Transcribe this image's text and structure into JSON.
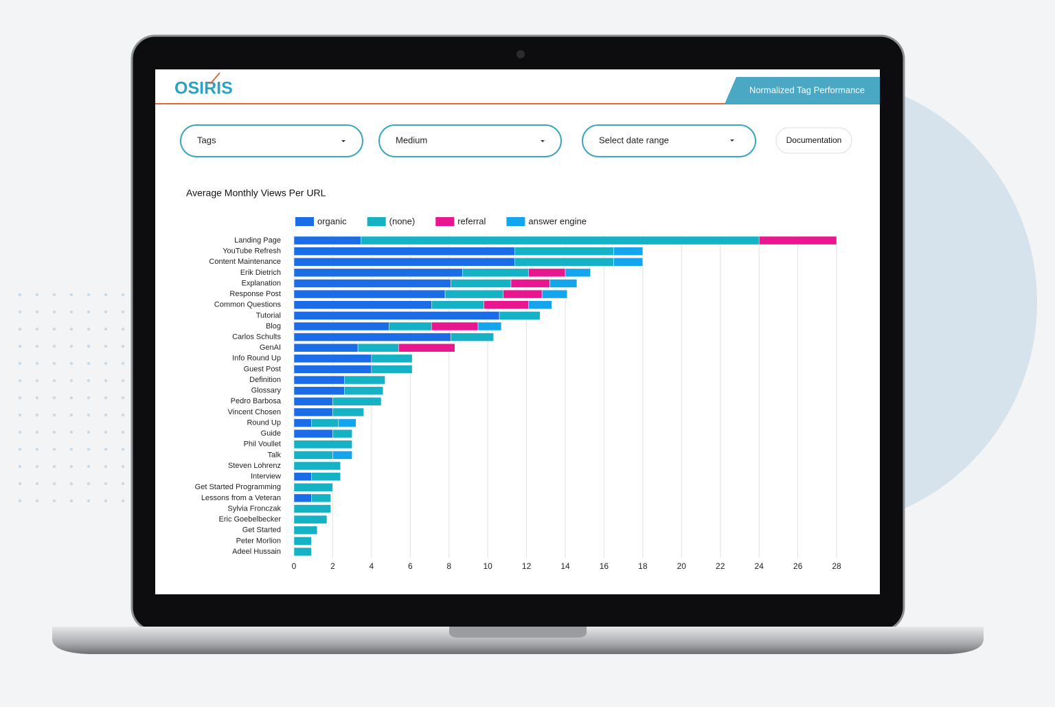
{
  "header": {
    "logo": "OSIRIS",
    "title": "Normalized Tag Performance"
  },
  "filters": [
    "Tags",
    "Medium",
    "Select date range"
  ],
  "button": "Documentation",
  "chart_data": {
    "type": "bar",
    "orientation": "horizontal",
    "stacked": true,
    "title": "Average Monthly Views Per URL",
    "categories": [
      "Landing Page",
      "YouTube Refresh",
      "Content Maintenance",
      "Erik Dietrich",
      "Explanation",
      "Response Post",
      "Common Questions",
      "Tutorial",
      "Blog",
      "Carlos Schults",
      "GenAI",
      "Info Round Up",
      "Guest Post",
      "Definition",
      "Glossary",
      "Pedro Barbosa",
      "Vincent Chosen",
      "Round Up",
      "Guide",
      "Phil Voullet",
      "Talk",
      "Steven Lohrenz",
      "Interview",
      "Get Started Programming",
      "Lessons from a Veteran",
      "Sylvia Fronczak",
      "Eric Goebelbecker",
      "Get Started",
      "Peter Morlion",
      "Adeel Hussain"
    ],
    "series": [
      {
        "name": "organic",
        "color": "#1a6de6",
        "values": [
          3.45,
          11.4,
          11.4,
          8.7,
          8.1,
          7.8,
          7.1,
          10.6,
          4.9,
          8.1,
          3.3,
          4.0,
          4.0,
          2.6,
          2.6,
          2.0,
          2.0,
          0.9,
          2.0,
          null,
          null,
          null,
          0.9,
          null,
          0.9,
          null,
          null,
          null,
          null,
          null
        ]
      },
      {
        "name": "(none)",
        "color": "#14b2c4",
        "values": [
          20.55,
          5.1,
          5.1,
          3.4,
          3.1,
          3.0,
          2.7,
          2.1,
          2.2,
          2.2,
          2.1,
          2.1,
          2.1,
          2.1,
          2.0,
          2.5,
          1.6,
          1.4,
          1.0,
          3.0,
          2.0,
          2.4,
          1.5,
          2.0,
          1.0,
          1.9,
          1.7,
          1.2,
          0.9,
          0.9
        ]
      },
      {
        "name": "referral",
        "color": "#e8168f",
        "values": [
          4.0,
          null,
          null,
          1.9,
          2.0,
          2.0,
          2.3,
          null,
          2.4,
          null,
          2.9,
          null,
          null,
          null,
          null,
          null,
          null,
          null,
          null,
          null,
          null,
          null,
          null,
          null,
          null,
          null,
          null,
          null,
          null,
          null
        ]
      },
      {
        "name": "answer engine",
        "color": "#14a5ef",
        "values": [
          null,
          1.5,
          1.5,
          1.3,
          1.4,
          1.3,
          1.2,
          null,
          1.2,
          null,
          null,
          null,
          null,
          null,
          null,
          null,
          null,
          0.9,
          null,
          null,
          1.0,
          null,
          null,
          null,
          null,
          null,
          null,
          null,
          null,
          null
        ]
      }
    ],
    "xlim": [
      0,
      28
    ],
    "xticks": [
      0,
      2,
      4,
      6,
      8,
      10,
      12,
      14,
      16,
      18,
      20,
      22,
      24,
      26,
      28
    ],
    "grid": true
  }
}
